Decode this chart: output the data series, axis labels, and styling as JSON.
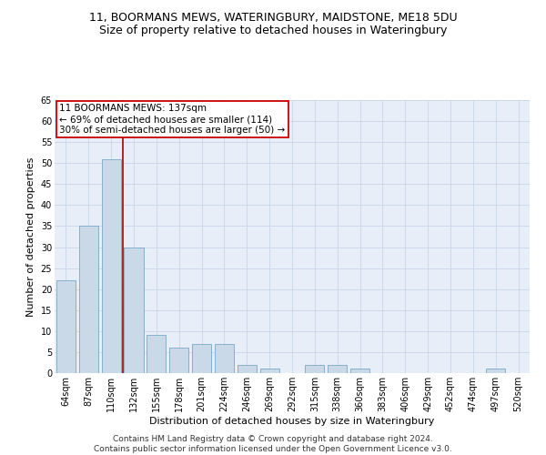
{
  "title1": "11, BOORMANS MEWS, WATERINGBURY, MAIDSTONE, ME18 5DU",
  "title2": "Size of property relative to detached houses in Wateringbury",
  "xlabel": "Distribution of detached houses by size in Wateringbury",
  "ylabel": "Number of detached properties",
  "categories": [
    "64sqm",
    "87sqm",
    "110sqm",
    "132sqm",
    "155sqm",
    "178sqm",
    "201sqm",
    "224sqm",
    "246sqm",
    "269sqm",
    "292sqm",
    "315sqm",
    "338sqm",
    "360sqm",
    "383sqm",
    "406sqm",
    "429sqm",
    "452sqm",
    "474sqm",
    "497sqm",
    "520sqm"
  ],
  "values": [
    22,
    35,
    51,
    30,
    9,
    6,
    7,
    7,
    2,
    1,
    0,
    2,
    2,
    1,
    0,
    0,
    0,
    0,
    0,
    1,
    0
  ],
  "bar_color": "#c9d9e8",
  "bar_edge_color": "#7aa8c8",
  "vline_x": 2.5,
  "vline_color": "#aa0000",
  "annotation_text": "11 BOORMANS MEWS: 137sqm\n← 69% of detached houses are smaller (114)\n30% of semi-detached houses are larger (50) →",
  "annotation_box_color": "#ffffff",
  "annotation_box_edge": "#cc0000",
  "ylim": [
    0,
    65
  ],
  "yticks": [
    0,
    5,
    10,
    15,
    20,
    25,
    30,
    35,
    40,
    45,
    50,
    55,
    60,
    65
  ],
  "grid_color": "#c8d4e8",
  "background_color": "#e8eef8",
  "footer": "Contains HM Land Registry data © Crown copyright and database right 2024.\nContains public sector information licensed under the Open Government Licence v3.0.",
  "title1_fontsize": 9,
  "title2_fontsize": 9,
  "xlabel_fontsize": 8,
  "ylabel_fontsize": 8,
  "tick_fontsize": 7,
  "annotation_fontsize": 7.5,
  "footer_fontsize": 6.5
}
